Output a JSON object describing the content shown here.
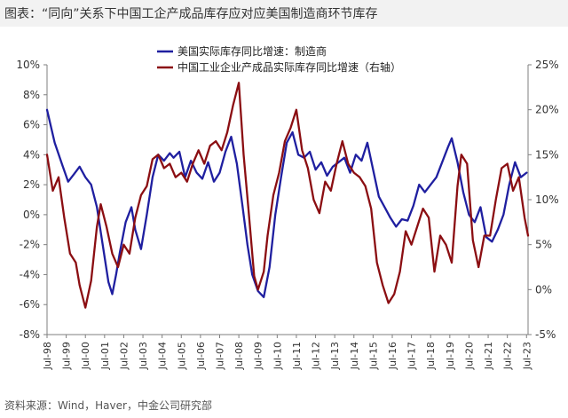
{
  "title": "图表：“同向”关系下中国工企产成品库存应对应美国制造商环节库存",
  "source": "资料来源：Wind，Haver，中金公司研究部",
  "colors": {
    "us": "#1f1fa0",
    "cn": "#8b0e12",
    "axis": "#7f7f7f"
  },
  "chart_data": {
    "type": "line",
    "title": "图表：“同向”关系下中国工企产成品库存应对应美国制造商环节库存",
    "x_range": [
      1998.5,
      2023.58
    ],
    "x_ticks": [
      {
        "label": "Jul-98",
        "x": 1998.5
      },
      {
        "label": "Jul-99",
        "x": 1999.5
      },
      {
        "label": "Jul-00",
        "x": 2000.5
      },
      {
        "label": "Jul-01",
        "x": 2001.5
      },
      {
        "label": "Jul-02",
        "x": 2002.5
      },
      {
        "label": "Jul-03",
        "x": 2003.5
      },
      {
        "label": "Jul-04",
        "x": 2004.5
      },
      {
        "label": "Jul-05",
        "x": 2005.5
      },
      {
        "label": "Jul-06",
        "x": 2006.5
      },
      {
        "label": "Jul-07",
        "x": 2007.5
      },
      {
        "label": "Jul-08",
        "x": 2008.5
      },
      {
        "label": "Jul-09",
        "x": 2009.5
      },
      {
        "label": "Jul-10",
        "x": 2010.5
      },
      {
        "label": "Jul-11",
        "x": 2011.5
      },
      {
        "label": "Jul-12",
        "x": 2012.5
      },
      {
        "label": "Jul-13",
        "x": 2013.5
      },
      {
        "label": "Jul-14",
        "x": 2014.5
      },
      {
        "label": "Jul-15",
        "x": 2015.5
      },
      {
        "label": "Jul-16",
        "x": 2016.5
      },
      {
        "label": "Jul-17",
        "x": 2017.5
      },
      {
        "label": "Jul-18",
        "x": 2018.5
      },
      {
        "label": "Jul-19",
        "x": 2019.5
      },
      {
        "label": "Jul-20",
        "x": 2020.5
      },
      {
        "label": "Jul-21",
        "x": 2021.5
      },
      {
        "label": "Jul-22",
        "x": 2022.5
      },
      {
        "label": "Jul-23",
        "x": 2023.5
      }
    ],
    "y_left": {
      "range": [
        -8,
        10
      ],
      "ticks": [
        10,
        8,
        6,
        4,
        2,
        0,
        -2,
        -4,
        -6,
        -8
      ],
      "labels": [
        "10%",
        "8%",
        "6%",
        "4%",
        "2%",
        "0%",
        "-2%",
        "-4%",
        "-6%",
        "-8%"
      ]
    },
    "y_right": {
      "range": [
        -5,
        25
      ],
      "ticks": [
        25,
        20,
        15,
        10,
        5,
        0,
        -5
      ],
      "labels": [
        "25%",
        "20%",
        "15%",
        "10%",
        "5%",
        "0%",
        "-5%"
      ]
    },
    "legend": {
      "position": "top-center"
    },
    "series": [
      {
        "name": "美国实际库存同比增速：制造商",
        "axis": "left",
        "x": [
          1998.5,
          1998.9,
          1999.3,
          1999.6,
          1999.9,
          2000.2,
          2000.5,
          2000.8,
          2001.1,
          2001.4,
          2001.7,
          2001.9,
          2002.1,
          2002.3,
          2002.6,
          2002.9,
          2003.1,
          2003.4,
          2003.7,
          2004.0,
          2004.3,
          2004.6,
          2004.9,
          2005.1,
          2005.4,
          2005.7,
          2006.0,
          2006.3,
          2006.6,
          2006.9,
          2007.2,
          2007.5,
          2007.8,
          2008.1,
          2008.4,
          2008.7,
          2008.95,
          2009.2,
          2009.5,
          2009.8,
          2010.1,
          2010.4,
          2010.7,
          2011.0,
          2011.3,
          2011.6,
          2011.9,
          2012.2,
          2012.5,
          2012.8,
          2013.1,
          2013.4,
          2013.7,
          2014.0,
          2014.3,
          2014.6,
          2014.9,
          2015.2,
          2015.5,
          2015.8,
          2016.1,
          2016.4,
          2016.7,
          2017.0,
          2017.3,
          2017.6,
          2017.9,
          2018.2,
          2018.5,
          2018.8,
          2019.1,
          2019.4,
          2019.6,
          2019.9,
          2020.2,
          2020.5,
          2020.8,
          2021.1,
          2021.4,
          2021.7,
          2022.0,
          2022.3,
          2022.6,
          2022.9,
          2023.2,
          2023.5
        ],
        "values": [
          7.0,
          4.8,
          3.3,
          2.2,
          2.7,
          3.2,
          2.5,
          2.0,
          0.5,
          -2.0,
          -4.5,
          -5.3,
          -4.0,
          -2.5,
          -0.5,
          0.5,
          -1.0,
          -2.3,
          0.0,
          2.5,
          4.0,
          3.6,
          4.1,
          3.8,
          4.2,
          2.5,
          3.6,
          2.8,
          2.4,
          3.5,
          2.2,
          2.8,
          4.2,
          5.2,
          3.4,
          0.5,
          -2.0,
          -4.0,
          -5.1,
          -5.5,
          -3.5,
          0.0,
          2.5,
          4.8,
          5.5,
          4.0,
          3.8,
          4.2,
          3.0,
          3.5,
          2.6,
          3.2,
          3.5,
          3.8,
          2.8,
          4.0,
          3.6,
          4.8,
          3.0,
          1.2,
          0.5,
          -0.2,
          -0.8,
          -0.3,
          -0.4,
          0.6,
          2.0,
          1.5,
          2.0,
          2.5,
          3.5,
          4.5,
          5.1,
          3.5,
          1.5,
          0.0,
          -0.5,
          0.5,
          -1.5,
          -1.8,
          -1.0,
          0.0,
          2.0,
          3.5,
          2.5,
          2.8
        ]
      },
      {
        "name": "中国工业企业产成品实际库存同比增速（右轴）",
        "axis": "right",
        "x": [
          1998.5,
          1998.8,
          1999.1,
          1999.4,
          1999.7,
          2000.0,
          2000.2,
          2000.5,
          2000.8,
          2001.1,
          2001.3,
          2001.6,
          2001.9,
          2002.2,
          2002.5,
          2002.8,
          2003.1,
          2003.4,
          2003.7,
          2004.0,
          2004.3,
          2004.6,
          2004.9,
          2005.2,
          2005.5,
          2005.8,
          2006.1,
          2006.4,
          2006.7,
          2007.0,
          2007.3,
          2007.6,
          2007.9,
          2008.2,
          2008.5,
          2008.75,
          2009.0,
          2009.3,
          2009.5,
          2009.8,
          2010.0,
          2010.3,
          2010.6,
          2010.9,
          2011.2,
          2011.5,
          2011.8,
          2012.1,
          2012.4,
          2012.7,
          2013.0,
          2013.3,
          2013.6,
          2013.9,
          2014.2,
          2014.5,
          2014.8,
          2015.1,
          2015.4,
          2015.7,
          2016.0,
          2016.3,
          2016.6,
          2016.9,
          2017.2,
          2017.5,
          2017.8,
          2018.1,
          2018.4,
          2018.7,
          2019.0,
          2019.3,
          2019.6,
          2019.9,
          2020.1,
          2020.4,
          2020.7,
          2021.0,
          2021.3,
          2021.6,
          2021.9,
          2022.2,
          2022.5,
          2022.8,
          2023.1,
          2023.4,
          2023.58
        ],
        "values": [
          15.0,
          11.0,
          12.5,
          8.0,
          4.0,
          3.0,
          0.5,
          -2.0,
          1.0,
          7.0,
          9.5,
          7.0,
          4.0,
          2.5,
          5.0,
          4.0,
          8.0,
          10.5,
          11.5,
          14.5,
          15.0,
          13.5,
          14.0,
          12.5,
          13.0,
          12.0,
          14.0,
          15.5,
          14.0,
          16.0,
          16.5,
          15.5,
          17.5,
          20.5,
          23.0,
          15.0,
          9.0,
          1.5,
          0.0,
          2.0,
          6.0,
          10.5,
          13.0,
          16.5,
          18.0,
          20.0,
          15.5,
          13.5,
          10.0,
          8.5,
          12.0,
          11.0,
          14.0,
          16.5,
          14.0,
          13.0,
          12.5,
          11.5,
          9.0,
          3.0,
          0.5,
          -1.5,
          -0.5,
          2.0,
          6.5,
          5.0,
          7.0,
          9.0,
          8.0,
          2.0,
          6.0,
          5.0,
          3.0,
          11.5,
          15.0,
          14.0,
          5.5,
          2.5,
          6.0,
          6.0,
          10.0,
          13.5,
          14.0,
          11.0,
          12.5,
          8.0,
          6.0
        ]
      }
    ]
  }
}
